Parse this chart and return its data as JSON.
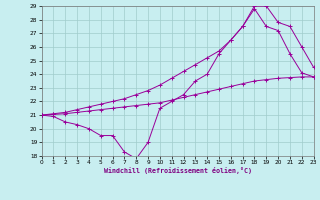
{
  "xlabel": "Windchill (Refroidissement éolien,°C)",
  "bg_color": "#c8eef0",
  "grid_color": "#a0cccc",
  "line_color": "#990099",
  "xlim": [
    0,
    23
  ],
  "ylim": [
    18,
    29
  ],
  "xticks": [
    0,
    1,
    2,
    3,
    4,
    5,
    6,
    7,
    8,
    9,
    10,
    11,
    12,
    13,
    14,
    15,
    16,
    17,
    18,
    19,
    20,
    21,
    22,
    23
  ],
  "yticks": [
    18,
    19,
    20,
    21,
    22,
    23,
    24,
    25,
    26,
    27,
    28,
    29
  ],
  "line1_x": [
    0,
    1,
    2,
    3,
    4,
    5,
    6,
    7,
    8,
    9,
    10,
    11,
    12,
    13,
    14,
    15,
    16,
    17,
    18,
    19,
    20,
    21,
    22,
    23
  ],
  "line1_y": [
    21,
    20.9,
    20.5,
    20.3,
    20.0,
    19.5,
    19.5,
    18.3,
    17.8,
    19.0,
    21.5,
    22.0,
    22.5,
    23.5,
    24.0,
    25.5,
    26.5,
    27.5,
    28.8,
    27.5,
    27.2,
    25.5,
    24.1,
    23.8
  ],
  "line2_x": [
    0,
    1,
    2,
    3,
    4,
    5,
    6,
    7,
    8,
    9,
    10,
    11,
    12,
    13,
    14,
    15,
    16,
    17,
    18,
    19,
    20,
    21,
    22,
    23
  ],
  "line2_y": [
    21,
    21.05,
    21.1,
    21.2,
    21.3,
    21.4,
    21.5,
    21.6,
    21.7,
    21.8,
    21.9,
    22.1,
    22.3,
    22.5,
    22.7,
    22.9,
    23.1,
    23.3,
    23.5,
    23.6,
    23.7,
    23.75,
    23.8,
    23.8
  ],
  "line3_x": [
    0,
    1,
    2,
    3,
    4,
    5,
    6,
    7,
    8,
    9,
    10,
    11,
    12,
    13,
    14,
    15,
    16,
    17,
    18,
    19,
    20,
    21,
    22,
    23
  ],
  "line3_y": [
    21,
    21.1,
    21.2,
    21.4,
    21.6,
    21.8,
    22.0,
    22.2,
    22.5,
    22.8,
    23.2,
    23.7,
    24.2,
    24.7,
    25.2,
    25.7,
    26.5,
    27.5,
    29.0,
    29.0,
    27.8,
    27.5,
    26.0,
    24.5
  ]
}
